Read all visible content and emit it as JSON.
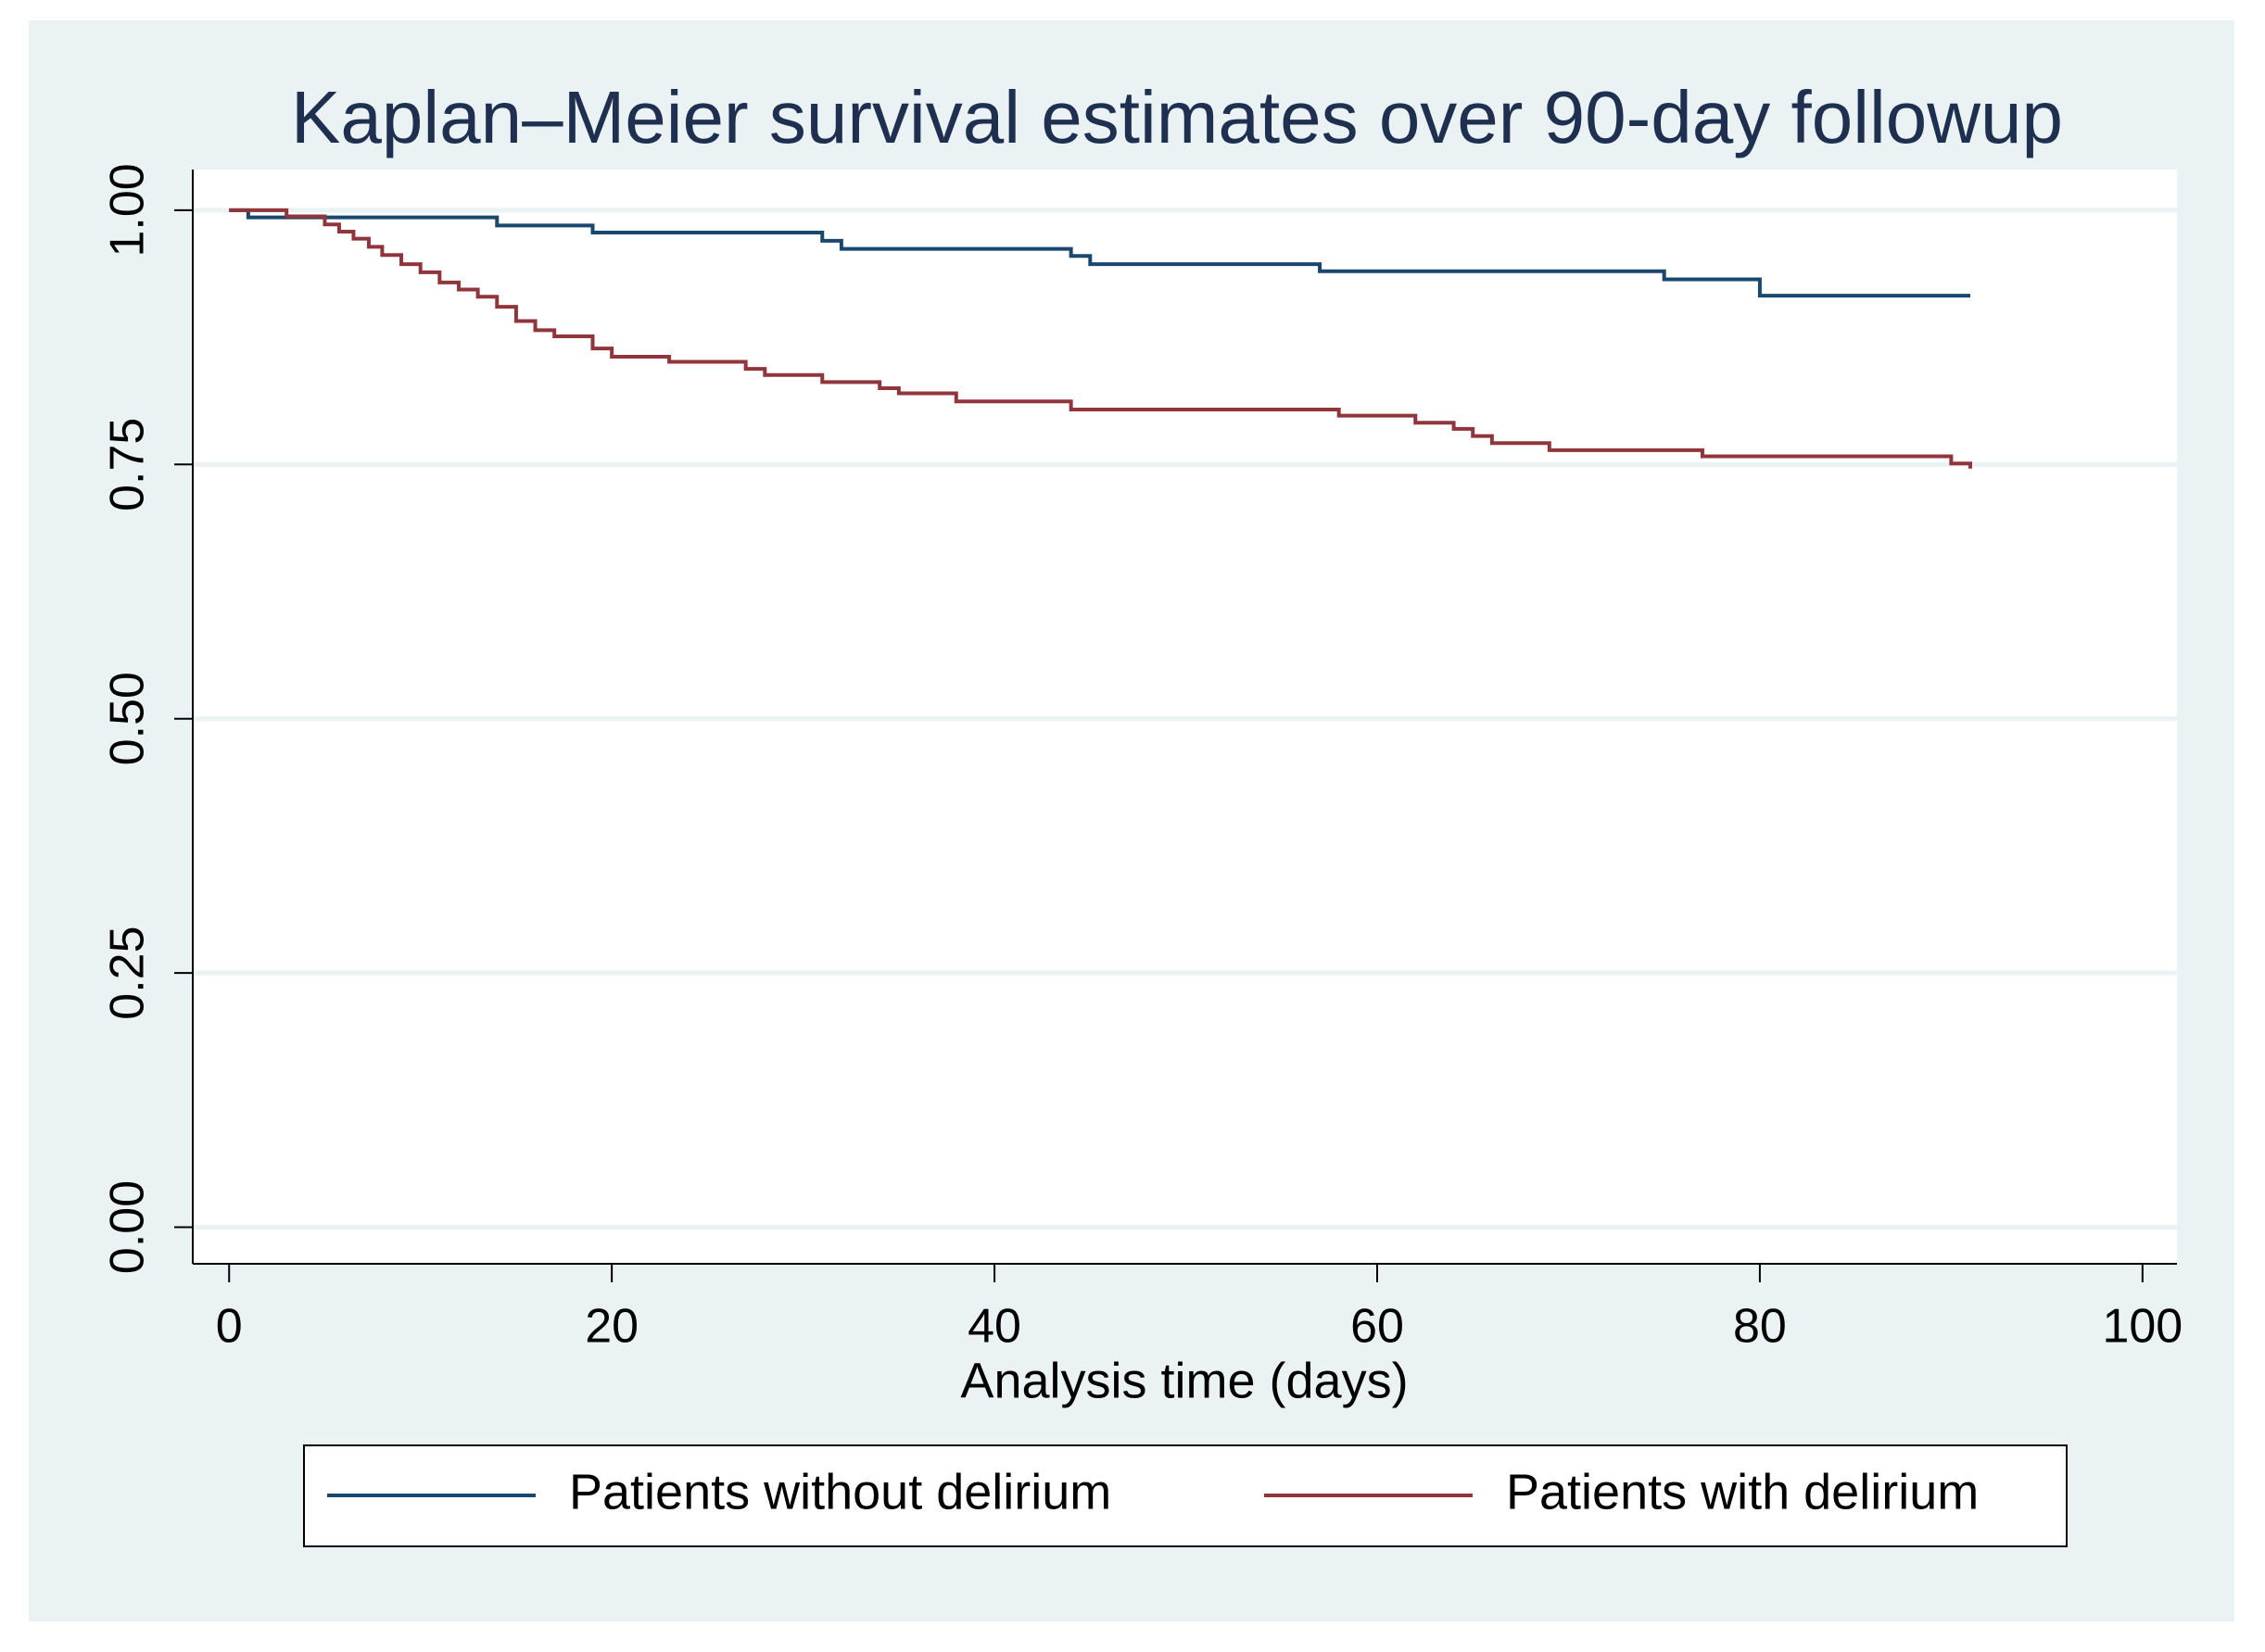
{
  "chart_data": {
    "type": "line",
    "step": true,
    "title": "Kaplan–Meier survival estimates over 90-day followup",
    "x_label": "Analysis time (days)",
    "xlim": [
      -1.9,
      101.8
    ],
    "ylim": [
      -0.036,
      1.04
    ],
    "xticks": [
      0,
      20,
      40,
      60,
      80,
      100
    ],
    "yticks": [
      {
        "value": 0,
        "label": "0.00"
      },
      {
        "value": 0.25,
        "label": "0.25"
      },
      {
        "value": 0.5,
        "label": "0.50"
      },
      {
        "value": 0.75,
        "label": "0.75"
      },
      {
        "value": 1,
        "label": "1.00"
      }
    ],
    "grid": true,
    "legend_position": "bottom",
    "series": [
      {
        "name": "Patients without delirium",
        "color": "#1a476f",
        "x": [
          0,
          1,
          14,
          19,
          31,
          32,
          44,
          45,
          57,
          75,
          80,
          91
        ],
        "values": [
          1,
          0.993,
          0.985,
          0.978,
          0.97,
          0.962,
          0.955,
          0.947,
          0.94,
          0.932,
          0.916,
          0.916
        ]
      },
      {
        "name": "Patients with delirium",
        "color": "#90353b",
        "x": [
          0,
          3,
          5,
          5.75,
          6.5,
          7.3,
          8,
          9,
          10,
          11,
          12,
          13,
          14,
          15,
          16,
          17,
          19,
          20,
          23,
          27,
          28,
          31,
          34,
          35,
          38,
          44,
          58,
          62,
          64,
          65,
          66,
          69,
          77,
          90,
          91
        ],
        "values": [
          1,
          0.994,
          0.986,
          0.979,
          0.972,
          0.964,
          0.956,
          0.947,
          0.939,
          0.929,
          0.922,
          0.915,
          0.905,
          0.891,
          0.882,
          0.876,
          0.864,
          0.856,
          0.851,
          0.844,
          0.838,
          0.831,
          0.825,
          0.82,
          0.812,
          0.804,
          0.798,
          0.791,
          0.785,
          0.778,
          0.771,
          0.764,
          0.758,
          0.751,
          0.746
        ]
      }
    ]
  }
}
